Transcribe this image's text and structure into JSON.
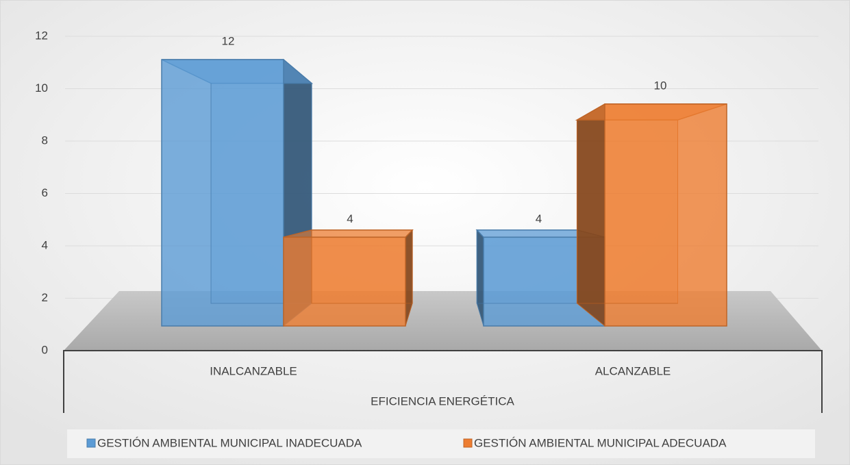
{
  "chart_data": {
    "type": "bar3d",
    "categories": [
      "INALCANZABLE",
      "ALCANZABLE"
    ],
    "xlabel": "EFICIENCIA ENERGÉTICA",
    "series": [
      {
        "name": "GESTIÓN AMBIENTAL MUNICIPAL INADECUADA",
        "color": "#5b9bd5",
        "values": [
          12,
          4
        ]
      },
      {
        "name": "GESTIÓN AMBIENTAL MUNICIPAL ADECUADA",
        "color": "#ed7d31",
        "values": [
          4,
          10
        ]
      }
    ],
    "ylim": [
      0,
      12
    ],
    "yticks": [
      0,
      2,
      4,
      6,
      8,
      10,
      12
    ],
    "grid": true,
    "legend": "bottom"
  }
}
